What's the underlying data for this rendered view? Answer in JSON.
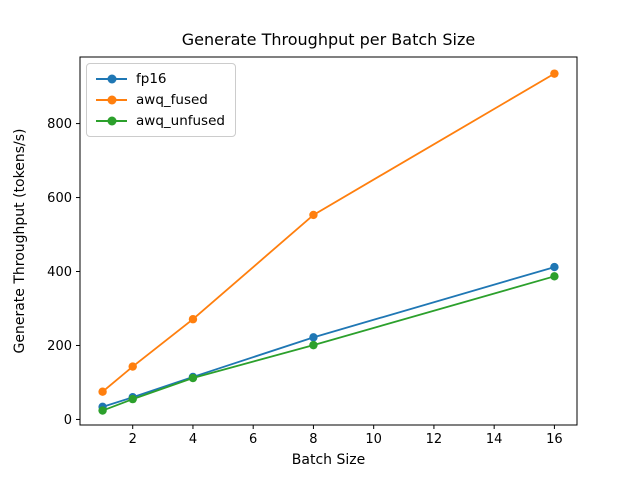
{
  "chart_data": {
    "type": "line",
    "title": "Generate Throughput per Batch Size",
    "xlabel": "Batch Size",
    "ylabel": "Generate Throughput (tokens/s)",
    "x": [
      1,
      2,
      4,
      8,
      16
    ],
    "series": [
      {
        "name": "fp16",
        "color": "#1f77b4",
        "values": [
          34,
          60,
          115,
          222,
          412
        ]
      },
      {
        "name": "awq_fused",
        "color": "#ff7f0e",
        "values": [
          75,
          143,
          271,
          553,
          935
        ]
      },
      {
        "name": "awq_unfused",
        "color": "#2ca02c",
        "values": [
          24,
          55,
          112,
          201,
          387
        ]
      }
    ],
    "x_ticks": [
      2,
      4,
      6,
      8,
      10,
      12,
      14,
      16
    ],
    "y_ticks": [
      0,
      200,
      400,
      600,
      800
    ],
    "xlim": [
      0.25,
      16.75
    ],
    "ylim": [
      -15,
      980
    ],
    "grid": false,
    "marker": "o",
    "legend_position": "upper-left",
    "axis_color": "#000000",
    "legend_border_color": "#cccccc"
  }
}
